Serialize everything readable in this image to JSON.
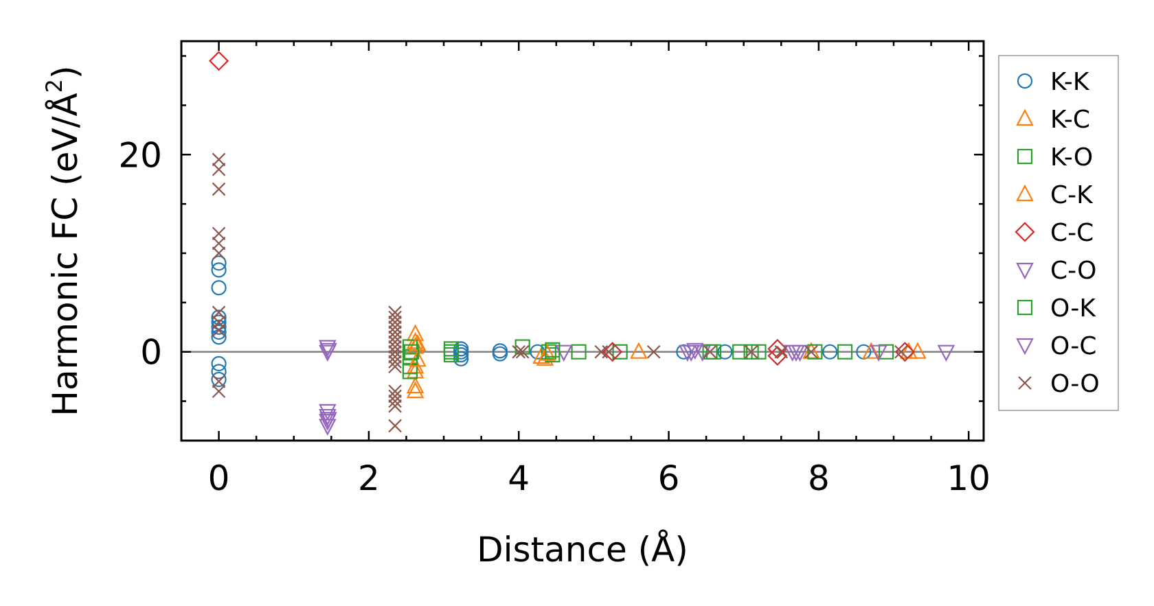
{
  "chart_data": {
    "type": "scatter",
    "title": "",
    "xlabel": "Distance (Å)",
    "ylabel_main": "Harmonic FC (eV/Å",
    "ylabel_sup": "2",
    "ylabel_end": ")",
    "xlim": [
      -0.5,
      10.2
    ],
    "ylim": [
      -9,
      31.5
    ],
    "xticks": [
      0,
      2,
      4,
      6,
      8,
      10
    ],
    "xtick_labels": [
      "0",
      "2",
      "4",
      "6",
      "8",
      "10"
    ],
    "yticks": [
      0,
      20
    ],
    "ytick_labels": [
      "0",
      "20"
    ],
    "x_minor_step": 0.5,
    "y_minor_step": 5,
    "reference_line_y": 0,
    "legend_position": "outside-right",
    "series": [
      {
        "name": "K-K",
        "marker": "circle",
        "color": "#1f77b4",
        "points": [
          [
            0,
            9
          ],
          [
            0,
            8.3
          ],
          [
            0,
            6.5
          ],
          [
            0,
            3.5
          ],
          [
            0,
            3
          ],
          [
            0,
            2.5
          ],
          [
            0,
            2
          ],
          [
            0,
            1.5
          ],
          [
            0,
            -1.2
          ],
          [
            0,
            -2
          ],
          [
            0,
            -2.8
          ],
          [
            3.23,
            0.3
          ],
          [
            3.23,
            0
          ],
          [
            3.23,
            -0.3
          ],
          [
            3.23,
            -0.7
          ],
          [
            3.75,
            0.1
          ],
          [
            3.75,
            -0.2
          ],
          [
            4.25,
            0
          ],
          [
            6.2,
            0
          ],
          [
            6.75,
            0
          ],
          [
            8.15,
            0
          ],
          [
            8.6,
            0
          ]
        ]
      },
      {
        "name": "K-C",
        "marker": "triangle-up",
        "color": "#ff7f0e",
        "points": [
          [
            2.62,
            1.8
          ],
          [
            2.62,
            1
          ],
          [
            2.62,
            0.5
          ],
          [
            2.62,
            -1.5
          ],
          [
            2.62,
            -2
          ],
          [
            2.62,
            -3.5
          ],
          [
            2.62,
            -4
          ],
          [
            4.3,
            -0.5
          ],
          [
            4.35,
            -0.7
          ],
          [
            5.6,
            0
          ],
          [
            7.9,
            0
          ],
          [
            8.7,
            0
          ],
          [
            9.32,
            0
          ]
        ]
      },
      {
        "name": "K-O",
        "marker": "square",
        "color": "#2ca02c",
        "points": [
          [
            2.55,
            0.5
          ],
          [
            2.55,
            -0.5
          ],
          [
            2.55,
            -1.5
          ],
          [
            2.55,
            -2
          ],
          [
            3.1,
            0.3
          ],
          [
            3.1,
            -0.3
          ],
          [
            4.05,
            0.5
          ],
          [
            4.4,
            0
          ],
          [
            4.45,
            -0.3
          ],
          [
            4.8,
            0
          ],
          [
            5.35,
            0
          ],
          [
            6.55,
            0
          ],
          [
            6.95,
            0
          ],
          [
            7.2,
            0
          ],
          [
            7.95,
            0
          ],
          [
            8.35,
            0
          ],
          [
            8.9,
            0
          ]
        ]
      },
      {
        "name": "C-K",
        "marker": "triangle-up",
        "color": "#ff7f0e",
        "points": [
          [
            2.65,
            0.8
          ],
          [
            2.65,
            -0.8
          ],
          [
            4.38,
            -0.2
          ],
          [
            9.2,
            0
          ]
        ]
      },
      {
        "name": "C-C",
        "marker": "diamond",
        "color": "#d62728",
        "points": [
          [
            0,
            29.5
          ],
          [
            5.25,
            0
          ],
          [
            7.45,
            0.3
          ],
          [
            7.45,
            -0.4
          ],
          [
            9.15,
            0
          ]
        ]
      },
      {
        "name": "C-O",
        "marker": "triangle-down",
        "color": "#9467bd",
        "points": [
          [
            1.45,
            0.5
          ],
          [
            1.45,
            0
          ],
          [
            1.45,
            -6
          ],
          [
            1.45,
            -6.5
          ],
          [
            1.45,
            -7
          ],
          [
            1.45,
            -7.5
          ],
          [
            4.6,
            0
          ],
          [
            6.25,
            0
          ],
          [
            6.35,
            0.2
          ],
          [
            6.45,
            0
          ],
          [
            7.65,
            0
          ],
          [
            7.75,
            0
          ],
          [
            8.8,
            0
          ],
          [
            9.7,
            0
          ]
        ]
      },
      {
        "name": "O-K",
        "marker": "square",
        "color": "#2ca02c",
        "points": [
          [
            2.57,
            0
          ],
          [
            3.1,
            0
          ],
          [
            4.45,
            0.2
          ],
          [
            6.6,
            0
          ],
          [
            7.1,
            0
          ]
        ]
      },
      {
        "name": "O-C",
        "marker": "triangle-down",
        "color": "#9467bd",
        "points": [
          [
            1.46,
            0.2
          ],
          [
            1.46,
            -6.8
          ],
          [
            6.3,
            0
          ],
          [
            7.7,
            0
          ]
        ]
      },
      {
        "name": "O-O",
        "marker": "x",
        "color": "#8c564b",
        "points": [
          [
            0,
            19.5
          ],
          [
            0,
            18.5
          ],
          [
            0,
            16.5
          ],
          [
            0,
            12
          ],
          [
            0,
            11
          ],
          [
            0,
            10
          ],
          [
            0,
            4
          ],
          [
            0,
            3
          ],
          [
            0,
            2.2
          ],
          [
            0,
            -3
          ],
          [
            0,
            -4
          ],
          [
            2.35,
            4
          ],
          [
            2.35,
            3.5
          ],
          [
            2.35,
            3
          ],
          [
            2.35,
            2.5
          ],
          [
            2.35,
            2
          ],
          [
            2.35,
            1.5
          ],
          [
            2.35,
            1
          ],
          [
            2.35,
            0.5
          ],
          [
            2.35,
            0
          ],
          [
            2.35,
            -0.5
          ],
          [
            2.35,
            -1
          ],
          [
            2.35,
            -1.5
          ],
          [
            2.35,
            -4
          ],
          [
            2.35,
            -4.5
          ],
          [
            2.35,
            -5
          ],
          [
            2.35,
            -5.5
          ],
          [
            2.35,
            -7.5
          ],
          [
            4.0,
            0
          ],
          [
            4.05,
            0
          ],
          [
            5.1,
            0
          ],
          [
            5.2,
            0
          ],
          [
            5.8,
            0
          ],
          [
            6.55,
            0
          ],
          [
            7.1,
            0
          ],
          [
            7.5,
            0
          ],
          [
            7.9,
            0
          ],
          [
            9.1,
            0
          ]
        ]
      }
    ]
  }
}
